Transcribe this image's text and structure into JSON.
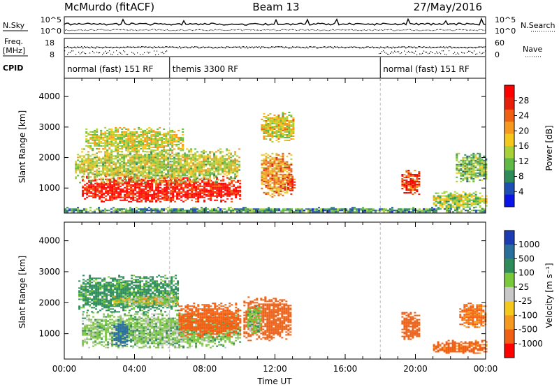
{
  "header": {
    "station": "McMurdo (fitACF)",
    "beam": "Beam 13",
    "date": "27/May/2016"
  },
  "side_labels": {
    "nsky": "N.Sky",
    "nsearch": "N.Search",
    "freq_line1": "Freq.",
    "freq_line2": "[MHz]",
    "nave": "Nave",
    "cpid": "CPID"
  },
  "noise_axis": {
    "top": "10^5",
    "bottom": "10^0",
    "right_top": "10^5",
    "right_bottom": "10^0"
  },
  "freq_axis": {
    "left_top": "18",
    "left_bottom": "8",
    "right_top": "60",
    "right_bottom": "0"
  },
  "cpid_segments": [
    {
      "label": "normal (fast) 151 RF",
      "start_h": 0,
      "end_h": 6
    },
    {
      "label": "themis 3300 RF",
      "start_h": 6,
      "end_h": 18
    },
    {
      "label": "normal (fast) 151 RF",
      "start_h": 18,
      "end_h": 24
    }
  ],
  "colorbars": {
    "power": {
      "label": "Power [dB]",
      "ticks": [
        "28",
        "24",
        "20",
        "16",
        "12",
        "8",
        "4"
      ]
    },
    "velocity": {
      "label": "Velocity [m s⁻¹]",
      "ticks": [
        "1000",
        "500",
        "100",
        "25",
        "-25",
        "-100",
        "-500",
        "-1000"
      ]
    }
  },
  "colors": {
    "power_scale": [
      "#0a14e6",
      "#1e50b4",
      "#2f8c5a",
      "#5fb946",
      "#a8d038",
      "#f5c81e",
      "#f59a1e",
      "#f06014",
      "#e61e0a",
      "#ff0000"
    ],
    "velocity_scale": [
      "#1c3cb4",
      "#2a6e9c",
      "#2f8c5a",
      "#7ac83c",
      "#c8c8c8",
      "#f5c81e",
      "#f59a1e",
      "#f06014",
      "#ff0000"
    ]
  },
  "chart_data": [
    {
      "type": "heatmap",
      "title": "McMurdo (fitACF)",
      "subtitle": "Beam 13",
      "xlabel": "Time UT",
      "ylabel": "Slant Range [km]",
      "x_ticks": [
        "00:00",
        "04:00",
        "08:00",
        "12:00",
        "16:00",
        "20:00",
        "00:00"
      ],
      "y_ticks": [
        "1000",
        "2000",
        "3000",
        "4000"
      ],
      "xlim": [
        0,
        24
      ],
      "ylim": [
        180,
        4600
      ],
      "colorbar": "Power [dB]",
      "zlim": [
        0,
        32
      ],
      "regions": [
        {
          "t": [
            1.0,
            10.0
          ],
          "r": [
            550,
            1400
          ],
          "value": 29
        },
        {
          "t": [
            0.6,
            10.0
          ],
          "r": [
            1200,
            2300
          ],
          "value": 15
        },
        {
          "t": [
            1.2,
            6.8
          ],
          "r": [
            2200,
            3000
          ],
          "value": 16
        },
        {
          "t": [
            11.2,
            12.9
          ],
          "r": [
            700,
            2200
          ],
          "value": 21
        },
        {
          "t": [
            12.7,
            13.1
          ],
          "r": [
            900,
            1400
          ],
          "value": 27
        },
        {
          "t": [
            11.2,
            13.1
          ],
          "r": [
            2500,
            3500
          ],
          "value": 17
        },
        {
          "t": [
            19.2,
            20.2
          ],
          "r": [
            800,
            1600
          ],
          "value": 26
        },
        {
          "t": [
            21.0,
            24.0
          ],
          "r": [
            350,
            900
          ],
          "value": 14
        },
        {
          "t": [
            22.3,
            24.0
          ],
          "r": [
            1200,
            2200
          ],
          "value": 12
        },
        {
          "t": [
            0.0,
            24.0
          ],
          "r": [
            200,
            380
          ],
          "value": 9
        }
      ]
    },
    {
      "type": "heatmap",
      "xlabel": "Time UT",
      "ylabel": "Slant Range [km]",
      "x_ticks": [
        "00:00",
        "04:00",
        "08:00",
        "12:00",
        "16:00",
        "20:00",
        "00:00"
      ],
      "y_ticks": [
        "1000",
        "2000",
        "3000",
        "4000"
      ],
      "xlim": [
        0,
        24
      ],
      "ylim": [
        180,
        4600
      ],
      "colorbar": "Velocity [m s⁻¹]",
      "zlim": [
        -1000,
        1000
      ],
      "regions": [
        {
          "t": [
            1.0,
            10.0
          ],
          "r": [
            550,
            1700
          ],
          "value": 60
        },
        {
          "t": [
            2.8,
            3.6
          ],
          "r": [
            600,
            1400
          ],
          "value": 600
        },
        {
          "t": [
            6.5,
            10.0
          ],
          "r": [
            900,
            2000
          ],
          "value": -250
        },
        {
          "t": [
            0.8,
            6.5
          ],
          "r": [
            1700,
            2900
          ],
          "value": 140
        },
        {
          "t": [
            2.8,
            6.5
          ],
          "r": [
            1900,
            2250
          ],
          "value": 10
        },
        {
          "t": [
            10.2,
            12.9
          ],
          "r": [
            800,
            2200
          ],
          "value": -250
        },
        {
          "t": [
            10.4,
            11.2
          ],
          "r": [
            1000,
            1900
          ],
          "value": 60
        },
        {
          "t": [
            19.2,
            20.2
          ],
          "r": [
            800,
            1700
          ],
          "value": -300
        },
        {
          "t": [
            21.0,
            24.0
          ],
          "r": [
            350,
            800
          ],
          "value": -150
        },
        {
          "t": [
            22.5,
            24.0
          ],
          "r": [
            1200,
            2000
          ],
          "value": -120
        }
      ]
    }
  ]
}
